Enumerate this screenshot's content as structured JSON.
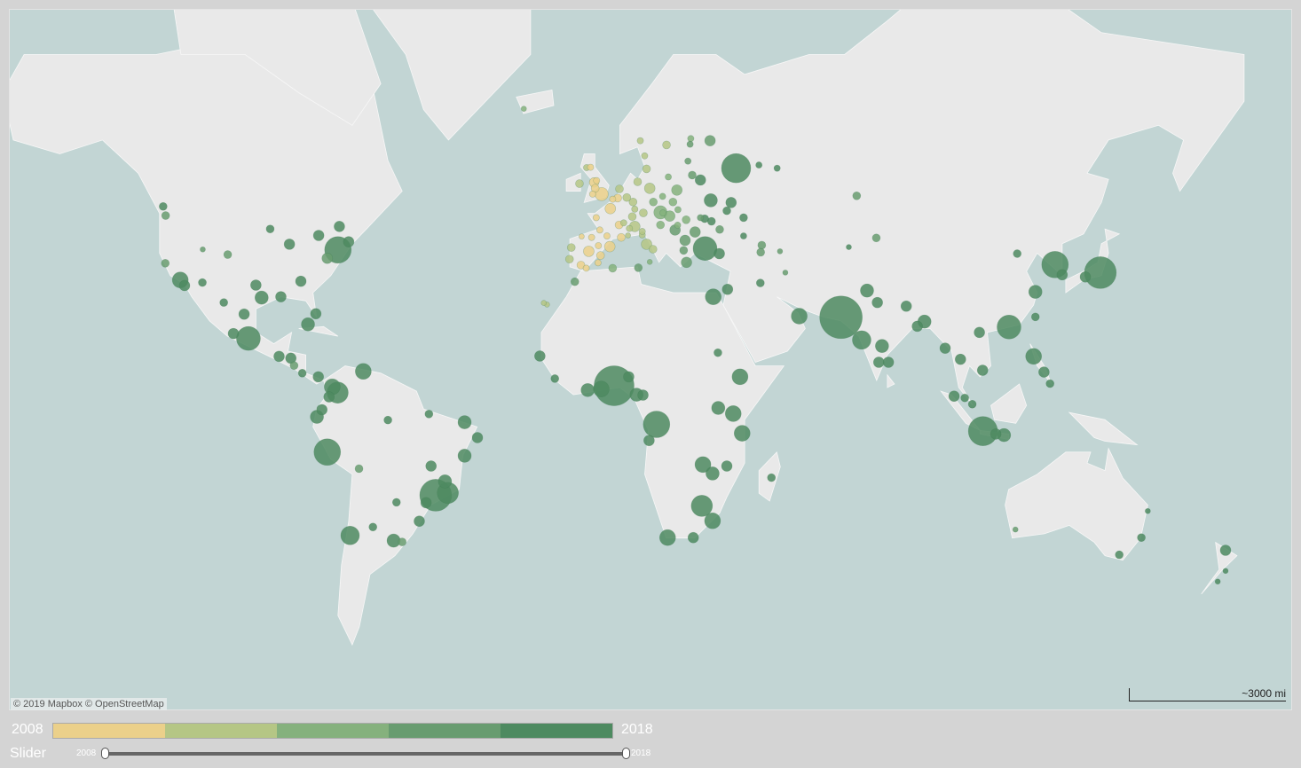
{
  "map": {
    "attribution": "© 2019 Mapbox © OpenStreetMap",
    "scale_label": "~3000 mi",
    "ocean_color": "#c2d5d4",
    "land_color": "#e9e9e9",
    "points_format": [
      "lon",
      "lat",
      "size",
      "year"
    ],
    "points": [
      [
        -99.1,
        19.4,
        4.5,
        2017
      ],
      [
        -74,
        40.7,
        5,
        2016
      ],
      [
        -118.2,
        34,
        3,
        2016
      ],
      [
        -117,
        32.7,
        2,
        2017
      ],
      [
        -122.4,
        37.8,
        1.5,
        2015
      ],
      [
        -123,
        49.3,
        1.5,
        2016
      ],
      [
        -122.3,
        47.6,
        1.5,
        2015
      ],
      [
        -87.6,
        41.9,
        2,
        2016
      ],
      [
        -79.4,
        43.7,
        2,
        2016
      ],
      [
        -73.6,
        45.5,
        2,
        2017
      ],
      [
        -71,
        42.4,
        2,
        2016
      ],
      [
        -77,
        38.9,
        2,
        2015
      ],
      [
        -84.4,
        33.7,
        2,
        2016
      ],
      [
        -95.4,
        29.8,
        2.5,
        2017
      ],
      [
        -97,
        32.8,
        2,
        2016
      ],
      [
        -90,
        30,
        2,
        2016
      ],
      [
        -80.2,
        25.8,
        2,
        2016
      ],
      [
        -104.9,
        39.7,
        1.5,
        2015
      ],
      [
        -112,
        33.4,
        1.5,
        2016
      ],
      [
        -111.9,
        40.8,
        1,
        2014
      ],
      [
        -93,
        45,
        1.5,
        2016
      ],
      [
        -100.3,
        25.7,
        2,
        2016
      ],
      [
        -103.3,
        20.7,
        2,
        2017
      ],
      [
        -106,
        28.6,
        1.5,
        2016
      ],
      [
        -82.4,
        23.1,
        2.5,
        2016
      ],
      [
        -90.5,
        14.6,
        2,
        2016
      ],
      [
        -87.2,
        14.1,
        2,
        2016
      ],
      [
        -86.3,
        12.1,
        1.5,
        2015
      ],
      [
        -79.5,
        9,
        2,
        2016
      ],
      [
        -84,
        10,
        1.5,
        2016
      ],
      [
        -74.1,
        4.6,
        4,
        2016
      ],
      [
        -75.6,
        6.2,
        3,
        2017
      ],
      [
        -76.5,
        3.4,
        2,
        2016
      ],
      [
        -66.9,
        10.5,
        3,
        2016
      ],
      [
        -78.5,
        -0.2,
        2,
        2016
      ],
      [
        -79.9,
        -2.2,
        2.5,
        2016
      ],
      [
        -77,
        -12,
        5,
        2016
      ],
      [
        -68.1,
        -16.5,
        1.5,
        2015
      ],
      [
        -70.6,
        -33.4,
        3.5,
        2016
      ],
      [
        -58.4,
        -34.6,
        2.5,
        2016
      ],
      [
        -46.6,
        -23.5,
        6,
        2017
      ],
      [
        -43.2,
        -22.9,
        4,
        2016
      ],
      [
        -47.9,
        -15.8,
        2,
        2016
      ],
      [
        -38.5,
        -13,
        2.5,
        2016
      ],
      [
        -34.9,
        -8,
        2,
        2016
      ],
      [
        -38.5,
        -3.7,
        2.5,
        2016
      ],
      [
        -60,
        -3.1,
        1.5,
        2016
      ],
      [
        -49.3,
        -25.4,
        2,
        2016
      ],
      [
        -51.2,
        -30,
        2,
        2016
      ],
      [
        -44,
        -19.9,
        2.5,
        2017
      ],
      [
        -56,
        -34.9,
        1.5,
        2015
      ],
      [
        -57.6,
        -25.3,
        1.5,
        2016
      ],
      [
        -64.2,
        -31.4,
        1.5,
        2016
      ],
      [
        -48.5,
        -1.4,
        1.5,
        2016
      ],
      [
        3.4,
        6.5,
        7.5,
        2016
      ],
      [
        15.3,
        -4.3,
        5,
        2016
      ],
      [
        -0.2,
        5.6,
        3,
        2016
      ],
      [
        -4,
        5.3,
        2.5,
        2016
      ],
      [
        -17.4,
        14.7,
        2,
        2016
      ],
      [
        -13.2,
        8.5,
        1.5,
        2016
      ],
      [
        7.5,
        9,
        2,
        2017
      ],
      [
        9.7,
        4,
        2.5,
        2016
      ],
      [
        11.5,
        3.9,
        2,
        2016
      ],
      [
        38.7,
        9,
        3,
        2016
      ],
      [
        36.8,
        -1.3,
        3,
        2016
      ],
      [
        39.3,
        -6.8,
        3,
        2016
      ],
      [
        32.6,
        0.3,
        2.5,
        2016
      ],
      [
        28.3,
        -15.4,
        3,
        2017
      ],
      [
        31,
        -17.8,
        2.5,
        2016
      ],
      [
        28,
        -26.2,
        4,
        2017
      ],
      [
        31,
        -29.9,
        3,
        2016
      ],
      [
        18.4,
        -33.9,
        3,
        2016
      ],
      [
        25.6,
        -33.9,
        2,
        2016
      ],
      [
        31.2,
        30,
        3,
        2016
      ],
      [
        13.2,
        -8.8,
        2,
        2016
      ],
      [
        32.5,
        15.6,
        1.5,
        2016
      ],
      [
        -7.6,
        33.6,
        1.5,
        2014
      ],
      [
        3,
        36.7,
        1.5,
        2013
      ],
      [
        10.2,
        36.8,
        1.5,
        2014
      ],
      [
        47.5,
        -18.9,
        1.5,
        2016
      ],
      [
        35,
        -15.8,
        2,
        2016
      ],
      [
        37.6,
        55.8,
        5.5,
        2016
      ],
      [
        30.3,
        59.9,
        2,
        2015
      ],
      [
        28.9,
        41,
        4.5,
        2017
      ],
      [
        32.9,
        39.9,
        2,
        2016
      ],
      [
        35.2,
        31.8,
        2,
        2016
      ],
      [
        44.4,
        33.3,
        1.5,
        2016
      ],
      [
        55.3,
        25.2,
        3,
        2017
      ],
      [
        51.4,
        35.7,
        1,
        2014
      ],
      [
        67,
        24.9,
        8,
        2016
      ],
      [
        74.3,
        31.5,
        2.5,
        2016
      ],
      [
        72.8,
        19,
        3.5,
        2017
      ],
      [
        77.2,
        28.6,
        2,
        2016
      ],
      [
        80.3,
        13,
        2,
        2016
      ],
      [
        77.6,
        13,
        2,
        2016
      ],
      [
        78.5,
        17.4,
        2.5,
        2016
      ],
      [
        85.3,
        27.7,
        2,
        2016
      ],
      [
        88.4,
        22.6,
        2,
        2016
      ],
      [
        90.4,
        23.8,
        2.5,
        2016
      ],
      [
        96.2,
        16.8,
        2,
        2016
      ],
      [
        100.5,
        13.8,
        2,
        2016
      ],
      [
        106.7,
        10.8,
        2,
        2016
      ],
      [
        105.8,
        21,
        2,
        2016
      ],
      [
        114.1,
        22.4,
        4.5,
        2016
      ],
      [
        121.5,
        31.2,
        2.5,
        2016
      ],
      [
        116.4,
        39.9,
        1.5,
        2016
      ],
      [
        127,
        37.5,
        5,
        2016
      ],
      [
        129,
        35.2,
        2,
        2016
      ],
      [
        139.7,
        35.7,
        6,
        2016
      ],
      [
        135.5,
        34.7,
        2,
        2016
      ],
      [
        121,
        14.6,
        3,
        2016
      ],
      [
        123.9,
        10.3,
        2,
        2016
      ],
      [
        125.6,
        7.1,
        1.5,
        2016
      ],
      [
        106.8,
        -6.2,
        5.5,
        2016
      ],
      [
        112.7,
        -7.3,
        2.5,
        2016
      ],
      [
        110.4,
        -7,
        2,
        2016
      ],
      [
        98.7,
        3.6,
        2,
        2016
      ],
      [
        103.8,
        1.35,
        1.5,
        2016
      ],
      [
        101.7,
        3.1,
        1.5,
        2016
      ],
      [
        121.5,
        25,
        1.5,
        2016
      ],
      [
        71.4,
        51.2,
        1.5,
        2015
      ],
      [
        76.9,
        43.2,
        1.5,
        2015
      ],
      [
        69.2,
        41.3,
        1,
        2016
      ],
      [
        44.8,
        41.7,
        1.5,
        2015
      ],
      [
        49.9,
        40.4,
        1,
        2014
      ],
      [
        151.2,
        -33.9,
        1.5,
        2016
      ],
      [
        145,
        -37.8,
        1.5,
        2016
      ],
      [
        153,
        -27.5,
        1,
        2016
      ],
      [
        115.9,
        -32,
        1,
        2015
      ],
      [
        174.8,
        -36.8,
        2,
        2016
      ],
      [
        174.8,
        -41.3,
        1,
        2016
      ],
      [
        172.6,
        -43.5,
        1,
        2016
      ],
      [
        -3.7,
        40.4,
        2,
        2009
      ],
      [
        -0.4,
        39.5,
        1.5,
        2009
      ],
      [
        2.2,
        41.4,
        2,
        2008
      ],
      [
        -5.9,
        37.4,
        1.5,
        2009
      ],
      [
        -8.6,
        41.2,
        1.5,
        2010
      ],
      [
        -9.1,
        38.7,
        1.5,
        2010
      ],
      [
        -4.4,
        36.7,
        1.2,
        2009
      ],
      [
        -1.1,
        37.9,
        1.2,
        2009
      ],
      [
        -2.9,
        43.3,
        1.2,
        2009
      ],
      [
        -5.7,
        43.5,
        1,
        2009
      ],
      [
        -1,
        41.6,
        1.2,
        2009
      ],
      [
        2.35,
        48.9,
        2,
        2009
      ],
      [
        4.8,
        45.8,
        1.5,
        2009
      ],
      [
        5.4,
        43.3,
        1.5,
        2009
      ],
      [
        -1.6,
        47.2,
        1.2,
        2009
      ],
      [
        -0.6,
        44.8,
        1.2,
        2009
      ],
      [
        1.4,
        43.6,
        1.2,
        2009
      ],
      [
        3,
        50.6,
        1.2,
        2009
      ],
      [
        7.3,
        43.7,
        1,
        2010
      ],
      [
        -0.1,
        51.5,
        2.5,
        2009
      ],
      [
        -2.2,
        53.5,
        1.8,
        2009
      ],
      [
        -1.9,
        52.5,
        1.5,
        2009
      ],
      [
        -4.3,
        55.9,
        1.2,
        2010
      ],
      [
        -3.2,
        55.95,
        1.2,
        2009
      ],
      [
        -6.3,
        53.3,
        1.5,
        2010
      ],
      [
        -2.6,
        51.5,
        1.2,
        2009
      ],
      [
        -1.5,
        53.8,
        1.2,
        2009
      ],
      [
        4.9,
        52.4,
        1.5,
        2010
      ],
      [
        4.4,
        50.8,
        1.5,
        2009
      ],
      [
        13.4,
        52.5,
        2,
        2011
      ],
      [
        10,
        53.6,
        1.5,
        2010
      ],
      [
        11.6,
        48.1,
        1.5,
        2010
      ],
      [
        8.7,
        50.1,
        1.5,
        2010
      ],
      [
        6.96,
        50.9,
        1.5,
        2010
      ],
      [
        9.2,
        48.8,
        1.2,
        2010
      ],
      [
        8.5,
        47.4,
        1.5,
        2011
      ],
      [
        6.1,
        46.2,
        1.2,
        2011
      ],
      [
        12.5,
        55.7,
        1.5,
        2010
      ],
      [
        18.1,
        59.3,
        1.5,
        2011
      ],
      [
        10.75,
        59.9,
        1.2,
        2011
      ],
      [
        24.9,
        60.2,
        1.2,
        2012
      ],
      [
        11.97,
        57.7,
        1.2,
        2010
      ],
      [
        9.2,
        45.5,
        2,
        2010
      ],
      [
        12.5,
        41.9,
        2,
        2011
      ],
      [
        14.3,
        40.85,
        1.5,
        2011
      ],
      [
        11.3,
        43.8,
        1.2,
        2010
      ],
      [
        7.7,
        45.1,
        1.2,
        2010
      ],
      [
        11.3,
        44.5,
        1.2,
        2010
      ],
      [
        13.4,
        38.1,
        1,
        2012
      ],
      [
        16.4,
        48.2,
        2.5,
        2012
      ],
      [
        14.4,
        50.1,
        1.5,
        2012
      ],
      [
        19,
        47.5,
        2,
        2012
      ],
      [
        21,
        52.2,
        2,
        2013
      ],
      [
        19.9,
        50.1,
        1.5,
        2013
      ],
      [
        17,
        51.1,
        1.2,
        2013
      ],
      [
        18.6,
        54.4,
        1.2,
        2013
      ],
      [
        16.4,
        45.8,
        1.5,
        2013
      ],
      [
        20.5,
        44.8,
        2,
        2014
      ],
      [
        23.3,
        42.7,
        2,
        2014
      ],
      [
        26.1,
        44.4,
        2,
        2014
      ],
      [
        23.7,
        38,
        2,
        2015
      ],
      [
        22.9,
        40.6,
        1.5,
        2015
      ],
      [
        24.1,
        56.9,
        1.2,
        2015
      ],
      [
        25.3,
        54.7,
        1.5,
        2015
      ],
      [
        24.7,
        59.4,
        1.2,
        2014
      ],
      [
        27.6,
        53.9,
        2,
        2016
      ],
      [
        30.5,
        50.4,
        2.5,
        2016
      ],
      [
        36.2,
        50,
        2,
        2016
      ],
      [
        35,
        48.5,
        1.5,
        2016
      ],
      [
        30.7,
        46.5,
        1.5,
        2016
      ],
      [
        28.8,
        47,
        1.5,
        2016
      ],
      [
        39.7,
        47.2,
        1.5,
        2016
      ],
      [
        33,
        44.9,
        1.5,
        2015
      ],
      [
        21.2,
        45.75,
        1.2,
        2013
      ],
      [
        27.6,
        47.2,
        1.2,
        2014
      ],
      [
        23.6,
        46.8,
        1.5,
        2013
      ],
      [
        17.1,
        48.1,
        1.2,
        2012
      ],
      [
        21.3,
        48.7,
        1.2,
        2013
      ],
      [
        44,
        56.3,
        1.2,
        2016
      ],
      [
        49.1,
        55.8,
        1.2,
        2016
      ],
      [
        39.7,
        43.6,
        1.2,
        2016
      ],
      [
        44.5,
        40.2,
        1.5,
        2015
      ],
      [
        -21.9,
        64.1,
        1,
        2012
      ],
      [
        -15.4,
        28.1,
        1,
        2011
      ],
      [
        -16.3,
        28.5,
        1,
        2010
      ]
    ]
  },
  "legend": {
    "min_label": "2008",
    "max_label": "2018",
    "colors": [
      "#ebd08a",
      "#b5c685",
      "#85b17d",
      "#689c70",
      "#4d8a60"
    ]
  },
  "slider": {
    "label": "Slider",
    "min_value": "2008",
    "max_value": "2018",
    "range": [
      2008,
      2018
    ]
  }
}
